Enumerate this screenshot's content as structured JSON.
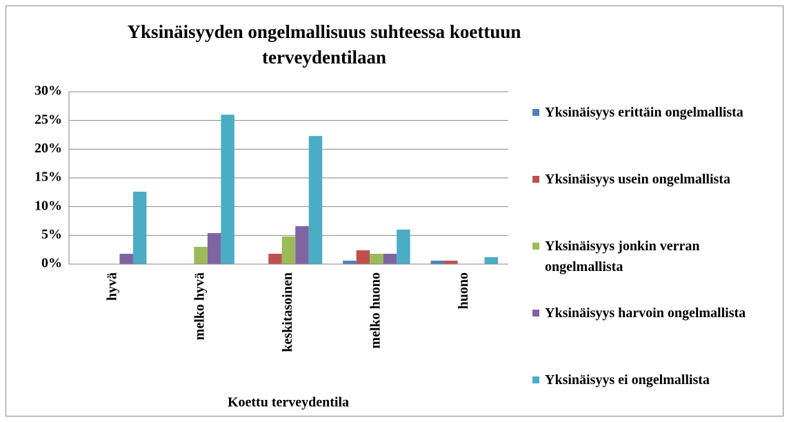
{
  "chart_data": {
    "type": "bar",
    "title": "Yksinäisyyden ongelmallisuus suhteessa koettuun terveydentilaan",
    "x_label": "Koettu terveydentila",
    "categories": [
      "hyvä",
      "melko hyvä",
      "keskitasoinen",
      "melko huono",
      "huono"
    ],
    "series": [
      {
        "name": "Yksinäisyys erittäin ongelmallista",
        "color": "#4f81bd",
        "values": [
          0,
          0,
          0,
          0.6,
          0.6
        ]
      },
      {
        "name": "Yksinäisyys usein ongelmallista",
        "color": "#c0504d",
        "values": [
          0,
          0,
          1.8,
          2.4,
          0.6
        ]
      },
      {
        "name": "Yksinäisyys jonkin verran ongelmallista",
        "color": "#9bbb59",
        "values": [
          0,
          3.0,
          4.8,
          1.8,
          0
        ]
      },
      {
        "name": "Yksinäisyys harvoin ongelmallista",
        "color": "#8064a2",
        "values": [
          1.8,
          5.4,
          6.6,
          1.8,
          0
        ]
      },
      {
        "name": "Yksinäisyys ei ongelmallista",
        "color": "#4bacc6",
        "values": [
          12.6,
          26.0,
          22.3,
          6.0,
          1.2
        ]
      }
    ],
    "ylim": [
      0,
      30
    ],
    "yticks": [
      {
        "value": 0,
        "label": "0%"
      },
      {
        "value": 5,
        "label": "5%"
      },
      {
        "value": 10,
        "label": "10%"
      },
      {
        "value": 15,
        "label": "15%"
      },
      {
        "value": 20,
        "label": "20%"
      },
      {
        "value": 25,
        "label": "25%"
      },
      {
        "value": 30,
        "label": "30%"
      }
    ],
    "grid": true,
    "legend": "right"
  }
}
